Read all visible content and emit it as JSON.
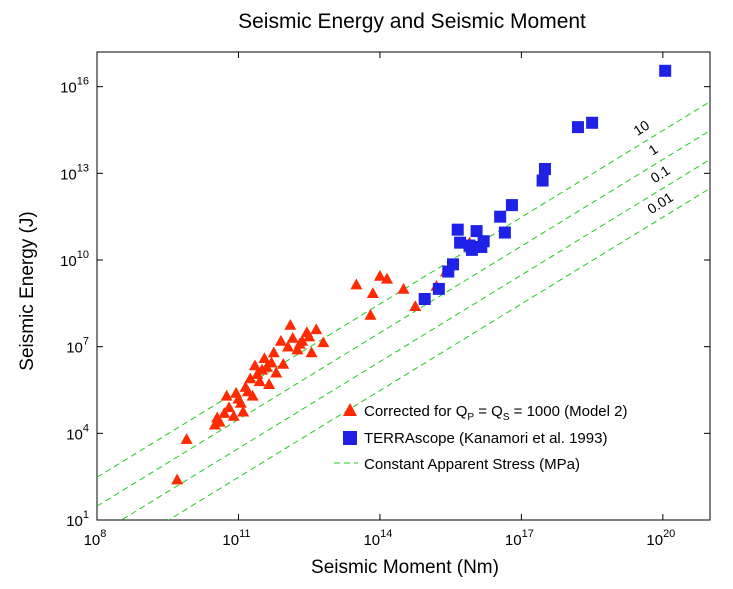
{
  "chart_data": {
    "type": "scatter",
    "title": "Seismic Energy and Seismic Moment",
    "xlabel": "Seismic Moment (Nm)",
    "ylabel": "Seismic Energy (J)",
    "x_scale": "log",
    "y_scale": "log",
    "xlim_exp": [
      8,
      21
    ],
    "ylim_exp": [
      1,
      17.2
    ],
    "x_ticks": [
      {
        "base": "10",
        "exp": "8",
        "value_exp": 8
      },
      {
        "base": "10",
        "exp": "11",
        "value_exp": 11
      },
      {
        "base": "10",
        "exp": "14",
        "value_exp": 14
      },
      {
        "base": "10",
        "exp": "17",
        "value_exp": 17
      },
      {
        "base": "10",
        "exp": "20",
        "value_exp": 20
      }
    ],
    "y_ticks": [
      {
        "base": "10",
        "exp": "1",
        "value_exp": 1
      },
      {
        "base": "10",
        "exp": "4",
        "value_exp": 4
      },
      {
        "base": "10",
        "exp": "7",
        "value_exp": 7
      },
      {
        "base": "10",
        "exp": "10",
        "value_exp": 10
      },
      {
        "base": "10",
        "exp": "13",
        "value_exp": 13
      },
      {
        "base": "10",
        "exp": "16",
        "value_exp": 16
      }
    ],
    "series": [
      {
        "name": "Corrected for Qp = Qs = 1000 (Model 2)",
        "marker": "triangle",
        "color": "#ff2a00",
        "points_log10": [
          [
            9.7,
            2.4
          ],
          [
            9.9,
            3.8
          ],
          [
            10.5,
            4.3
          ],
          [
            10.55,
            4.55
          ],
          [
            10.6,
            4.4
          ],
          [
            10.7,
            4.7
          ],
          [
            10.75,
            5.3
          ],
          [
            10.8,
            4.9
          ],
          [
            10.9,
            4.6
          ],
          [
            10.95,
            5.4
          ],
          [
            11.0,
            5.2
          ],
          [
            11.05,
            5.05
          ],
          [
            11.1,
            4.75
          ],
          [
            11.15,
            5.6
          ],
          [
            11.2,
            5.45
          ],
          [
            11.25,
            5.9
          ],
          [
            11.3,
            5.3
          ],
          [
            11.35,
            6.35
          ],
          [
            11.4,
            6.05
          ],
          [
            11.45,
            5.8
          ],
          [
            11.5,
            6.2
          ],
          [
            11.55,
            6.6
          ],
          [
            11.6,
            6.3
          ],
          [
            11.65,
            5.7
          ],
          [
            11.7,
            6.45
          ],
          [
            11.75,
            6.8
          ],
          [
            11.8,
            6.1
          ],
          [
            11.9,
            7.2
          ],
          [
            11.95,
            6.4
          ],
          [
            12.05,
            7.0
          ],
          [
            12.1,
            7.75
          ],
          [
            12.15,
            7.3
          ],
          [
            12.25,
            6.9
          ],
          [
            12.3,
            7.1
          ],
          [
            12.35,
            7.2
          ],
          [
            12.45,
            7.5
          ],
          [
            12.5,
            7.35
          ],
          [
            12.55,
            6.8
          ],
          [
            12.65,
            7.6
          ],
          [
            12.8,
            7.15
          ],
          [
            13.5,
            9.15
          ],
          [
            13.8,
            8.1
          ],
          [
            13.85,
            8.85
          ],
          [
            14.0,
            9.45
          ],
          [
            14.15,
            9.35
          ],
          [
            14.5,
            9.0
          ],
          [
            14.75,
            8.4
          ],
          [
            15.2,
            9.1
          ],
          [
            15.4,
            9.6
          ],
          [
            15.9,
            10.6
          ]
        ]
      },
      {
        "name": "TERRAscope (Kanamori et al. 1993)",
        "marker": "square",
        "color": "#1f22e6",
        "points_log10": [
          [
            14.95,
            8.65
          ],
          [
            15.25,
            9.0
          ],
          [
            15.45,
            9.6
          ],
          [
            15.55,
            9.85
          ],
          [
            15.65,
            11.05
          ],
          [
            15.7,
            10.6
          ],
          [
            15.9,
            10.5
          ],
          [
            15.95,
            10.35
          ],
          [
            16.05,
            11.0
          ],
          [
            16.15,
            10.45
          ],
          [
            16.2,
            10.65
          ],
          [
            16.55,
            11.5
          ],
          [
            16.65,
            10.95
          ],
          [
            16.8,
            11.9
          ],
          [
            17.45,
            12.75
          ],
          [
            17.5,
            13.15
          ],
          [
            18.2,
            14.6
          ],
          [
            18.5,
            14.75
          ],
          [
            20.05,
            16.55
          ]
        ]
      }
    ],
    "reference_lines": [
      {
        "label": "10",
        "offset": -5.52
      },
      {
        "label": "1",
        "offset": -6.52
      },
      {
        "label": "0.1",
        "offset": -7.52
      },
      {
        "label": "0.01",
        "offset": -8.52
      }
    ],
    "legend": {
      "placement": "bottom-right",
      "items": [
        {
          "prefix": "Corrected for Q",
          "sub1": "P",
          "mid": " = Q",
          "sub2": "S",
          "suffix": " = 1000 (Model 2)"
        },
        {
          "text": "TERRAscope (Kanamori et al. 1993)"
        },
        {
          "text": "Constant Apparent Stress (MPa)"
        }
      ]
    },
    "colors": {
      "triangle": "#ff2a00",
      "square": "#1f22e6",
      "reference_line": "#22cc22",
      "axis": "#000000"
    }
  }
}
